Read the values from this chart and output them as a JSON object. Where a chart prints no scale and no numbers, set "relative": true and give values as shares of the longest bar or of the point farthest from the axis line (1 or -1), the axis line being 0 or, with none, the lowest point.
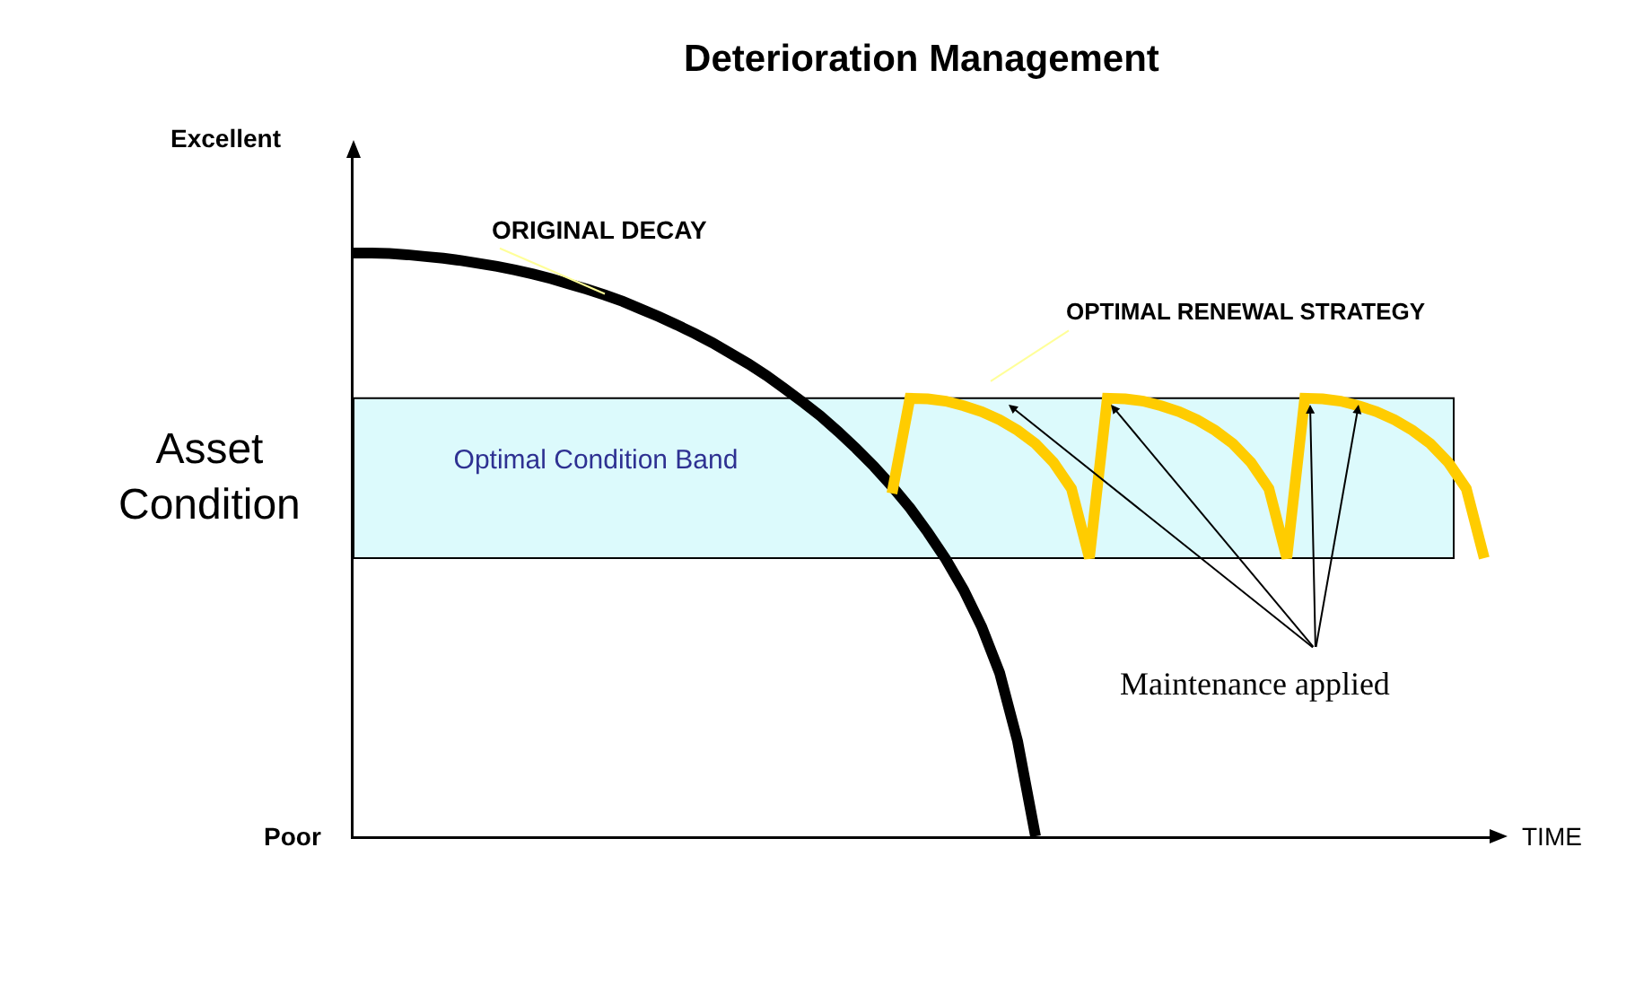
{
  "chart_data": {
    "type": "line",
    "title": "Deterioration Management",
    "xlabel": "TIME",
    "ylabel": "Asset Condition",
    "relative": true,
    "grid": false,
    "marker": "none",
    "line_style": "solid",
    "categories": [
      null,
      null,
      null,
      null,
      null,
      null,
      null,
      null,
      null,
      null,
      null,
      null,
      null,
      null,
      null,
      null,
      null,
      null,
      null,
      null,
      null,
      null,
      null,
      null,
      null,
      null,
      null,
      null,
      null,
      null,
      null,
      null,
      null,
      null,
      null,
      null,
      null,
      null,
      null,
      null,
      null,
      null,
      null,
      null,
      null,
      null,
      null,
      null,
      null,
      null,
      null,
      null,
      null,
      null,
      null,
      null,
      null,
      null,
      null,
      null,
      null,
      null,
      null,
      null
    ],
    "series": [
      {
        "color": "#000000",
        "values": [
          1,
          1.0,
          0.999,
          0.997,
          0.994,
          0.991,
          0.987,
          0.982,
          0.977,
          0.971,
          0.964,
          0.956,
          0.947,
          0.938,
          0.928,
          0.917,
          0.904,
          0.891,
          0.877,
          0.862,
          0.846,
          0.828,
          0.81,
          0.79,
          0.768,
          0.745,
          0.721,
          0.694,
          0.665,
          0.634,
          0.6,
          0.563,
          0.521,
          0.475,
          0.422,
          0.359,
          0.28,
          0.163,
          0,
          null,
          null,
          null,
          null,
          null,
          null,
          null,
          null,
          null,
          null,
          null,
          null,
          null,
          null,
          null,
          null,
          null,
          null,
          null,
          null,
          null,
          null,
          null,
          null,
          null
        ]
      },
      {
        "color": "#ffcc00",
        "values": [
          null,
          null,
          null,
          null,
          null,
          null,
          null,
          null,
          null,
          null,
          null,
          null,
          null,
          null,
          null,
          null,
          null,
          null,
          null,
          null,
          null,
          null,
          null,
          null,
          null,
          null,
          null,
          null,
          null,
          null,
          0.588,
          0.751,
          0.75,
          0.746,
          0.738,
          0.728,
          0.714,
          0.696,
          0.673,
          0.641,
          0.596,
          0.477,
          0.751,
          0.75,
          0.746,
          0.738,
          0.728,
          0.714,
          0.696,
          0.673,
          0.641,
          0.596,
          0.477,
          0.751,
          0.75,
          0.746,
          0.738,
          0.728,
          0.714,
          0.696,
          0.673,
          0.641,
          0.596,
          0.477
        ]
      }
    ],
    "bands": [
      {
        "axis": "y",
        "from": 0.477,
        "to": 0.751,
        "label": "Optimal Condition Band",
        "color": "#dcfafc"
      }
    ],
    "annotations": [
      "Excellent",
      "Poor",
      "ORIGINAL DECAY",
      "OPTIMAL RENEWAL STRATEGY",
      "Maintenance applied"
    ]
  }
}
